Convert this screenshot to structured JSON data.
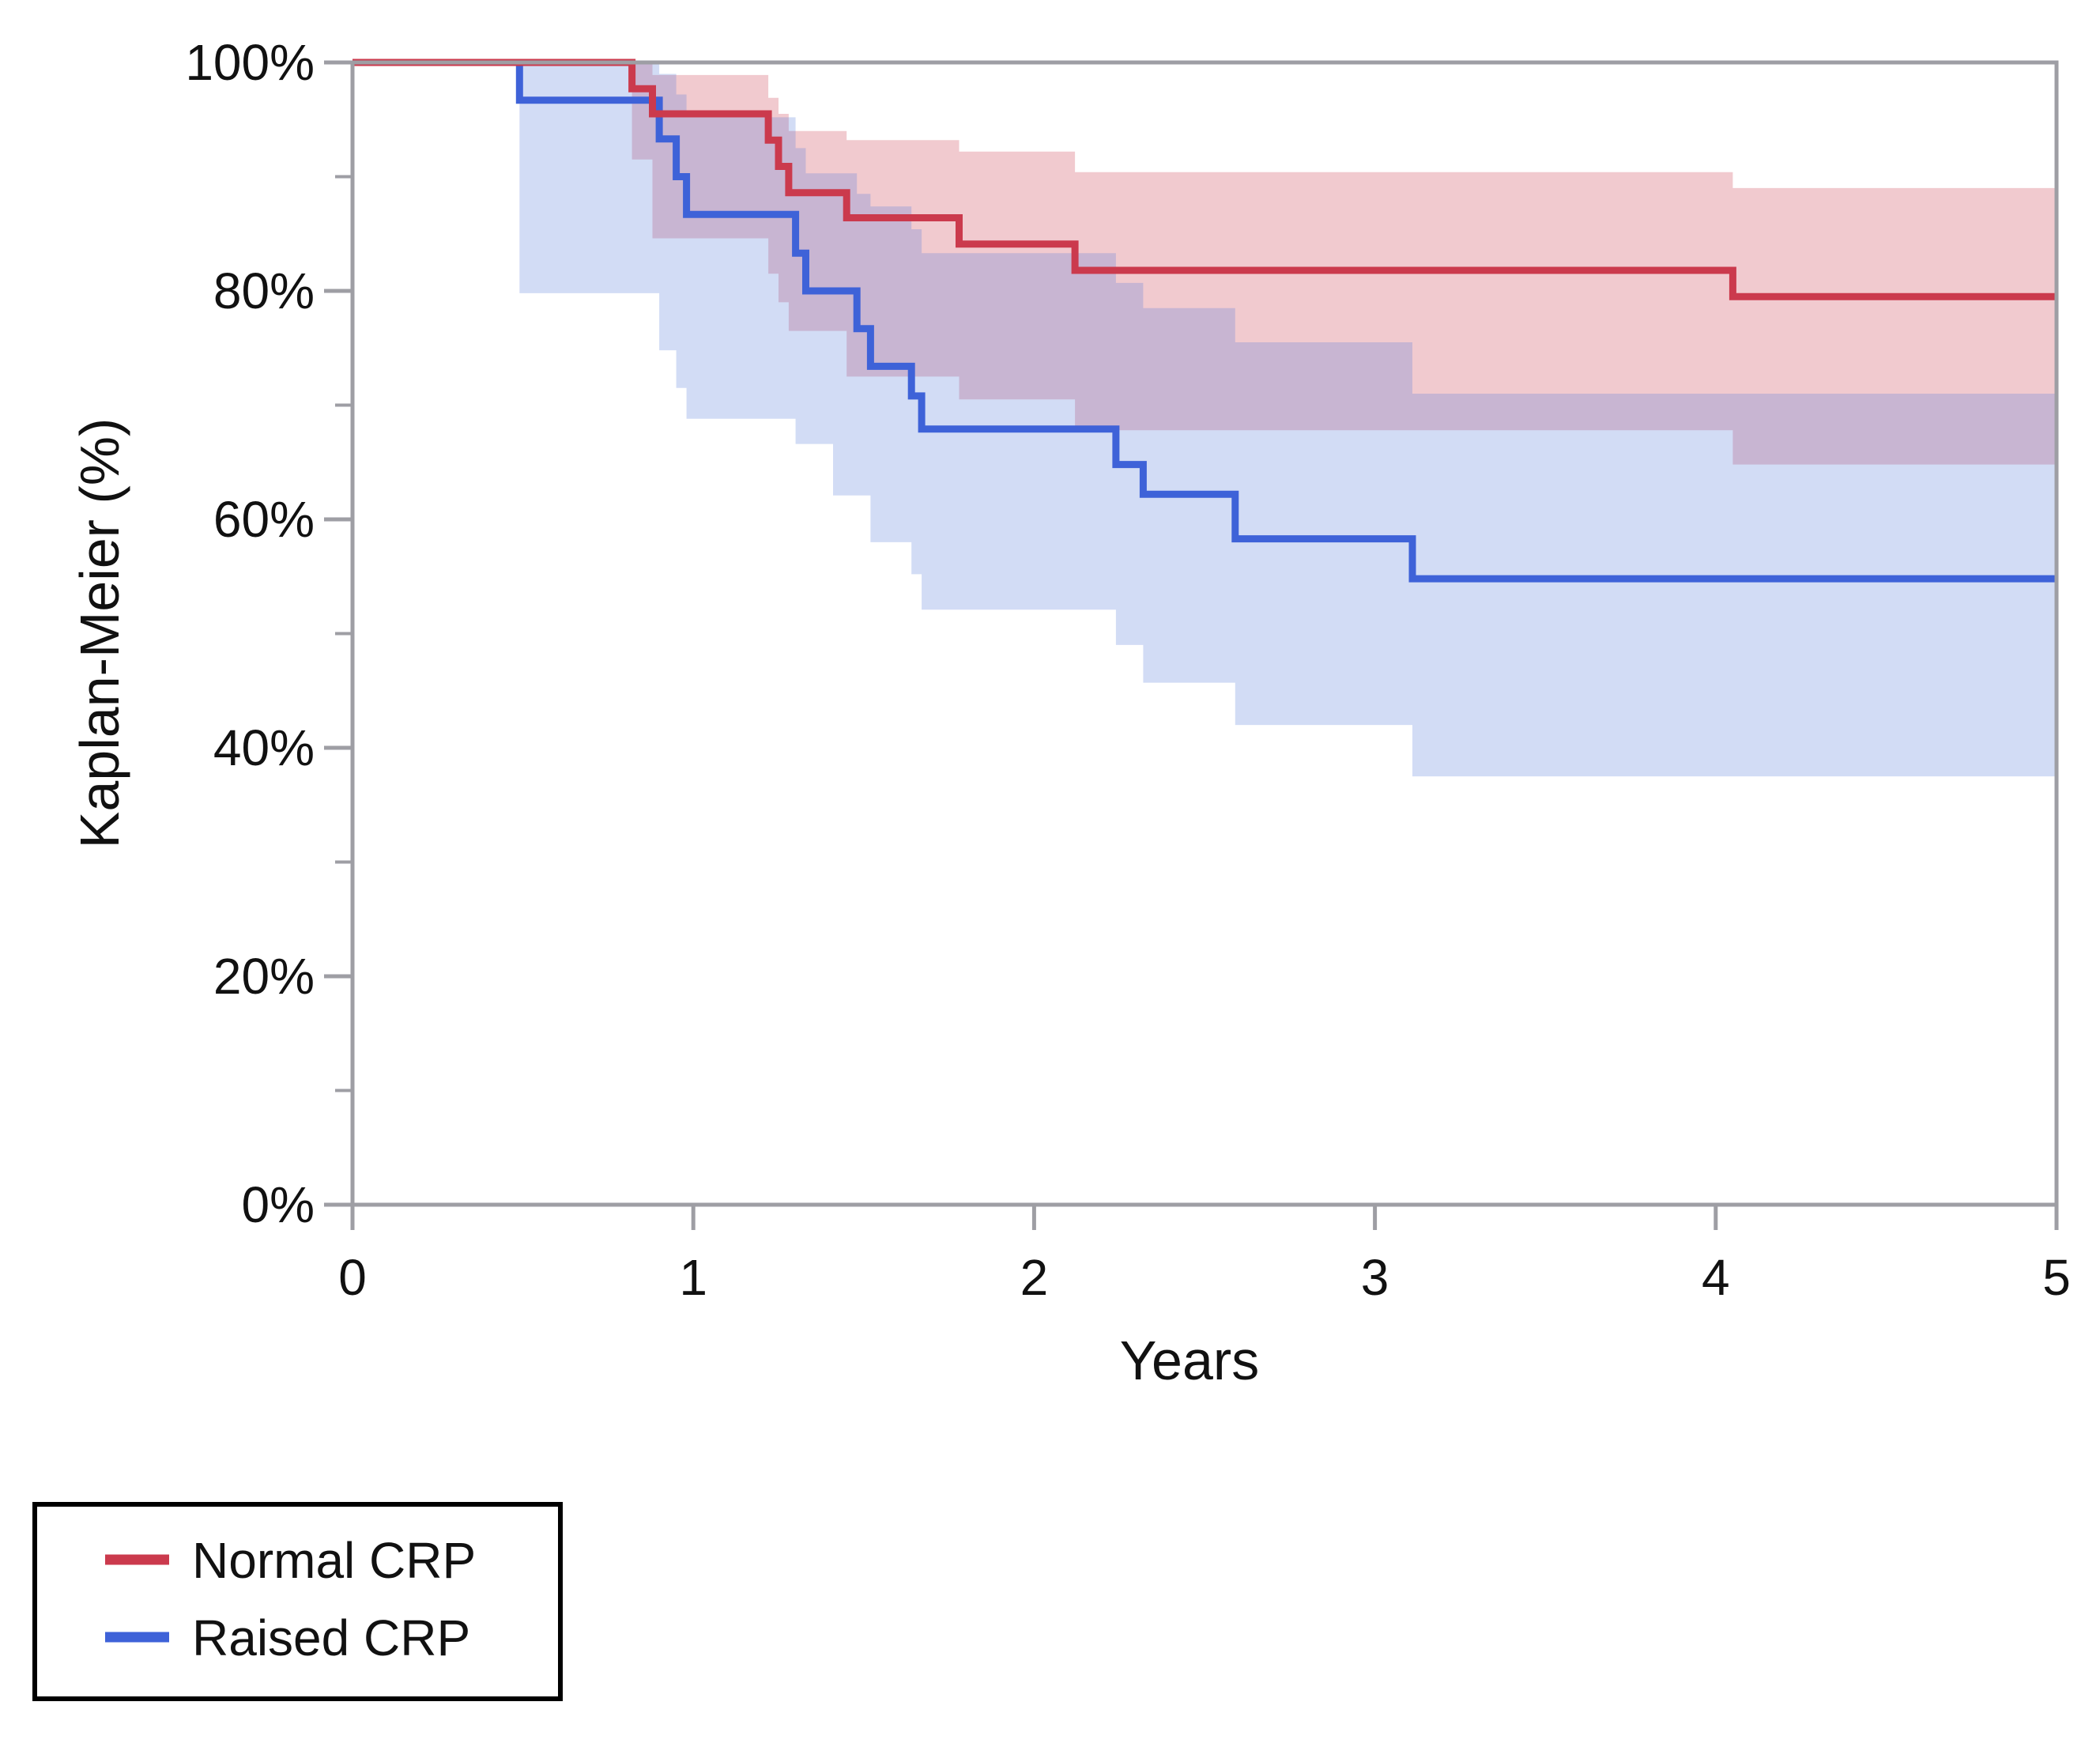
{
  "figure": {
    "kind": "kaplan-meier-survival-plot",
    "background": "#ffffff",
    "frame_color": "#9e9ea4"
  },
  "axes": {
    "x_title": "Years",
    "y_title": "Kaplan-Meier (%)",
    "x_range": [
      0,
      5
    ],
    "y_range": [
      0,
      100
    ],
    "x_ticks": [
      {
        "value": 0,
        "label": "0"
      },
      {
        "value": 1,
        "label": "1"
      },
      {
        "value": 2,
        "label": "2"
      },
      {
        "value": 3,
        "label": "3"
      },
      {
        "value": 4,
        "label": "4"
      },
      {
        "value": 5,
        "label": "5"
      }
    ],
    "y_ticks": [
      {
        "value": 100,
        "label": "100%"
      },
      {
        "value": 80,
        "label": "80%"
      },
      {
        "value": 60,
        "label": "60%"
      },
      {
        "value": 40,
        "label": "40%"
      },
      {
        "value": 20,
        "label": "20%"
      },
      {
        "value": 0,
        "label": "0%"
      }
    ],
    "y_minor_ticks": [
      90,
      70,
      50,
      30,
      10
    ]
  },
  "legend": {
    "border_color": "#000000",
    "items": [
      {
        "label": "Normal CRP",
        "color": "#cb3a4d"
      },
      {
        "label": "Raised CRP",
        "color": "#3e62d8"
      }
    ]
  },
  "chart_data": {
    "type": "line",
    "subtype": "kaplan-meier-step-with-ci-bands",
    "title": "",
    "xlabel": "Years",
    "ylabel": "Kaplan-Meier (%)",
    "xlim": [
      0,
      5
    ],
    "ylim": [
      0,
      100
    ],
    "grid": false,
    "legend_position": "bottom-left-outside",
    "series": [
      {
        "name": "Normal CRP",
        "color": "#cb3a4d",
        "band_fill": "rgba(203,58,77,0.27)",
        "steps": [
          [
            0,
            100
          ],
          [
            0.82,
            97.7
          ],
          [
            0.88,
            95.5
          ],
          [
            1.22,
            93.2
          ],
          [
            1.25,
            90.9
          ],
          [
            1.28,
            88.6
          ],
          [
            1.45,
            86.4
          ],
          [
            1.78,
            84.1
          ],
          [
            2.12,
            81.8
          ],
          [
            4.05,
            79.5
          ]
        ],
        "ci_upper": [
          [
            0.82,
            100
          ],
          [
            0.88,
            98.9
          ],
          [
            1.22,
            96.9
          ],
          [
            1.25,
            95.5
          ],
          [
            1.28,
            94.0
          ],
          [
            1.45,
            93.2
          ],
          [
            1.78,
            92.2
          ],
          [
            2.12,
            90.4
          ],
          [
            4.05,
            89.0
          ]
        ],
        "ci_lower": [
          [
            0.82,
            91.5
          ],
          [
            0.88,
            84.6
          ],
          [
            1.22,
            81.5
          ],
          [
            1.25,
            79.0
          ],
          [
            1.28,
            76.5
          ],
          [
            1.45,
            72.5
          ],
          [
            1.78,
            70.5
          ],
          [
            2.12,
            67.8
          ],
          [
            4.05,
            64.8
          ]
        ],
        "final_value_pct": 79.5
      },
      {
        "name": "Raised CRP",
        "color": "#3e62d8",
        "band_fill": "rgba(95,130,220,0.28)",
        "steps": [
          [
            0,
            100
          ],
          [
            0.49,
            96.7
          ],
          [
            0.9,
            93.3
          ],
          [
            0.95,
            90.0
          ],
          [
            0.98,
            86.7
          ],
          [
            1.3,
            83.3
          ],
          [
            1.33,
            80.0
          ],
          [
            1.48,
            76.7
          ],
          [
            1.52,
            73.4
          ],
          [
            1.64,
            70.8
          ],
          [
            1.67,
            67.9
          ],
          [
            2.24,
            64.8
          ],
          [
            2.32,
            62.2
          ],
          [
            2.59,
            58.3
          ],
          [
            3.11,
            54.8
          ]
        ],
        "ci_upper": [
          [
            0.49,
            100
          ],
          [
            0.9,
            99.0
          ],
          [
            0.95,
            97.2
          ],
          [
            0.98,
            95.2
          ],
          [
            1.3,
            92.5
          ],
          [
            1.33,
            90.3
          ],
          [
            1.48,
            88.5
          ],
          [
            1.52,
            87.4
          ],
          [
            1.64,
            85.4
          ],
          [
            1.67,
            83.3
          ],
          [
            2.24,
            80.7
          ],
          [
            2.32,
            78.5
          ],
          [
            2.59,
            75.5
          ],
          [
            3.11,
            71.0
          ]
        ],
        "ci_lower": [
          [
            0.49,
            79.8
          ],
          [
            0.9,
            74.8
          ],
          [
            0.95,
            71.5
          ],
          [
            0.98,
            68.8
          ],
          [
            1.3,
            66.6
          ],
          [
            1.41,
            62.1
          ],
          [
            1.52,
            58.0
          ],
          [
            1.64,
            55.2
          ],
          [
            1.67,
            52.1
          ],
          [
            2.24,
            49.0
          ],
          [
            2.32,
            45.7
          ],
          [
            2.59,
            42.0
          ],
          [
            3.11,
            37.5
          ]
        ],
        "final_value_pct": 54.8
      }
    ]
  }
}
